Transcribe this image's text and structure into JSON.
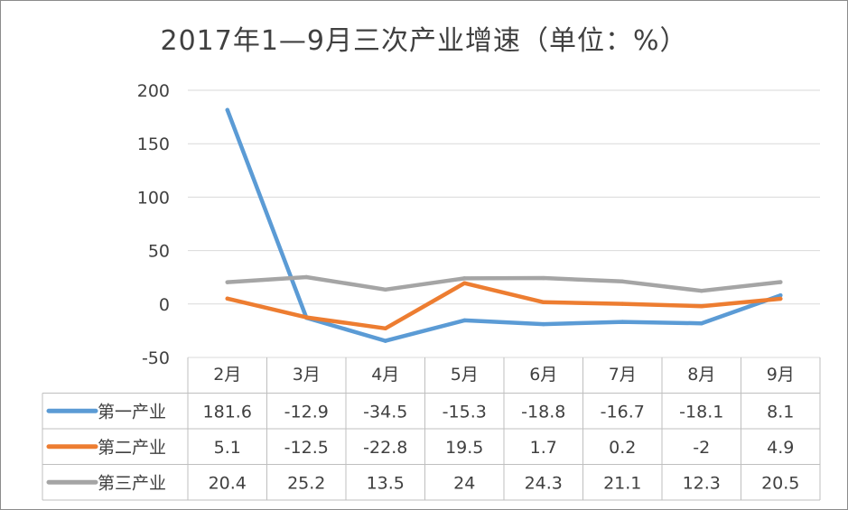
{
  "title": "2017年1—9月三次产业增速（单位：%）",
  "chart_data": {
    "type": "line",
    "title": "2017年1—9月三次产业增速（单位：%）",
    "categories": [
      "2月",
      "3月",
      "4月",
      "5月",
      "6月",
      "7月",
      "8月",
      "9月"
    ],
    "ylim": [
      -50,
      200
    ],
    "yticks": [
      200,
      150,
      100,
      50,
      0,
      -50
    ],
    "grid": true,
    "data_table": true,
    "series": [
      {
        "name": "第一产业",
        "color": "#5b9bd5",
        "values": [
          181.6,
          -12.9,
          -34.5,
          -15.3,
          -18.8,
          -16.7,
          -18.1,
          8.1
        ]
      },
      {
        "name": "第二产业",
        "color": "#ed7d31",
        "values": [
          5.1,
          -12.5,
          -22.8,
          19.5,
          1.7,
          0.2,
          -2,
          4.9
        ]
      },
      {
        "name": "第三产业",
        "color": "#a5a5a5",
        "values": [
          20.4,
          25.2,
          13.5,
          24,
          24.3,
          21.1,
          12.3,
          20.5
        ]
      }
    ]
  }
}
